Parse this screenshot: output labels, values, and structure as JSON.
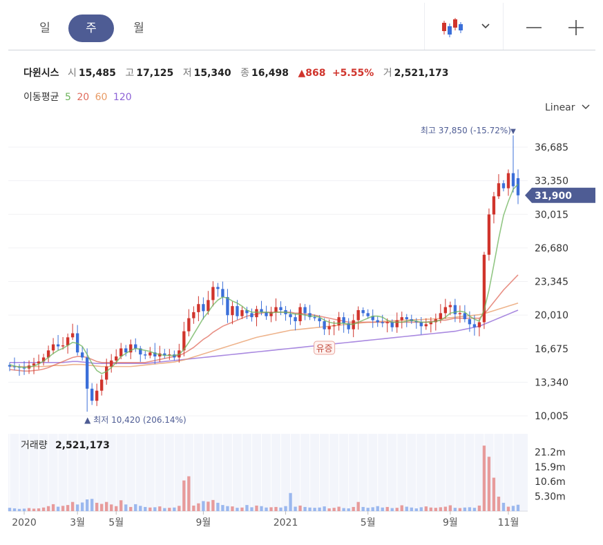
{
  "tabs": [
    {
      "label": "일",
      "active": false
    },
    {
      "label": "주",
      "active": true
    },
    {
      "label": "월",
      "active": false
    }
  ],
  "toolbar": {
    "chart_type_icon": "candlestick-icon",
    "dropdown_icon": "chevron-down-icon",
    "zoom_out_icon": "minus-icon",
    "zoom_in_icon": "plus-icon"
  },
  "stock": {
    "name": "다윈시스",
    "open_label": "시",
    "open": "15,485",
    "high_label": "고",
    "high": "17,125",
    "low_label": "저",
    "low": "15,340",
    "close_label": "종",
    "close": "16,498",
    "change": "868",
    "change_pct": "+5.55%",
    "volume_label": "거",
    "volume": "2,521,173"
  },
  "moving_average": {
    "label": "이동평균",
    "periods": [
      {
        "value": "5",
        "color": "#6cb35a"
      },
      {
        "value": "20",
        "color": "#e06b5c"
      },
      {
        "value": "60",
        "color": "#e89a64"
      },
      {
        "value": "120",
        "color": "#8c62d6"
      }
    ]
  },
  "scale": {
    "label": "Linear"
  },
  "colors": {
    "up": "#d0342c",
    "down": "#3b6fd9",
    "accent": "#4e5c94",
    "vol_up": "#e79b9b",
    "vol_down": "#9bb8ee"
  },
  "chart_data": {
    "type": "candlestick",
    "y_ticks": [
      "36,685",
      "33,350",
      "30,015",
      "26,680",
      "23,345",
      "20,010",
      "16,675",
      "13,340",
      "10,005"
    ],
    "y_tick_values": [
      36685,
      33350,
      30015,
      26680,
      23345,
      20010,
      16675,
      13340,
      10005
    ],
    "ylim": [
      10005,
      36685
    ],
    "x_ticks": [
      "2020",
      "3월",
      "5월",
      "9월",
      "2021",
      "5월",
      "9월",
      "11월"
    ],
    "x_tick_index": [
      3,
      14,
      22,
      40,
      57,
      74,
      91,
      103
    ],
    "current_price": "31,900",
    "current_value": 31900,
    "high_marker": {
      "label": "최고",
      "value": "37,850",
      "pct": "(-15.72%)",
      "index": 104
    },
    "low_marker": {
      "label": "최저",
      "value": "10,420",
      "pct": "(206.14%)",
      "index": 16
    },
    "annotation": {
      "label": "유증",
      "index": 65
    },
    "closes": [
      14900,
      14850,
      14800,
      14700,
      15000,
      15200,
      15400,
      15800,
      16500,
      17100,
      16900,
      17000,
      17800,
      18200,
      16300,
      15800,
      12700,
      11500,
      12500,
      13600,
      14900,
      15500,
      15900,
      16700,
      16300,
      17100,
      16700,
      16100,
      16000,
      16300,
      15900,
      16200,
      16000,
      16100,
      15800,
      16500,
      18400,
      19700,
      20300,
      21100,
      20400,
      21500,
      22800,
      22600,
      21800,
      20000,
      20900,
      19900,
      20500,
      20200,
      19800,
      20600,
      20300,
      19900,
      20300,
      20800,
      20500,
      20100,
      19800,
      19400,
      20800,
      20200,
      19800,
      19700,
      19400,
      18600,
      18900,
      19000,
      19800,
      19200,
      18600,
      19500,
      20500,
      20200,
      19900,
      19500,
      19300,
      19200,
      19300,
      18800,
      19500,
      19800,
      19600,
      19400,
      19300,
      18900,
      19100,
      19300,
      19600,
      20200,
      20800,
      21000,
      20100,
      20200,
      19600,
      19100,
      18800,
      19300,
      26000,
      30000,
      31800,
      33100,
      32600,
      34100,
      32800,
      31900
    ],
    "ma5": [
      15100,
      14950,
      14850,
      14800,
      14850,
      14950,
      15150,
      15450,
      15800,
      16200,
      16500,
      16700,
      17000,
      17300,
      17200,
      16900,
      16100,
      15200,
      14500,
      14200,
      14400,
      14800,
      15300,
      15900,
      16200,
      16500,
      16700,
      16600,
      16500,
      16400,
      16200,
      16100,
      16000,
      16000,
      16000,
      16100,
      16600,
      17300,
      18100,
      18900,
      19700,
      20300,
      21000,
      21500,
      21800,
      21700,
      21400,
      21200,
      20900,
      20500,
      20300,
      20300,
      20300,
      20300,
      20200,
      20300,
      20300,
      20300,
      20200,
      20100,
      20100,
      20000,
      19900,
      19900,
      19800,
      19500,
      19300,
      19200,
      19200,
      19200,
      19100,
      19100,
      19300,
      19500,
      19700,
      19900,
      19900,
      19800,
      19500,
      19300,
      19300,
      19300,
      19400,
      19500,
      19400,
      19300,
      19300,
      19300,
      19400,
      19500,
      19800,
      20200,
      20300,
      20400,
      20300,
      19900,
      19600,
      19400,
      20500,
      22500,
      25000,
      27600,
      29900,
      31300,
      32500,
      33000
    ],
    "ma20": [
      14600,
      14550,
      14500,
      14450,
      14450,
      14500,
      14550,
      14650,
      14800,
      15000,
      15200,
      15400,
      15600,
      15800,
      15900,
      15900,
      15800,
      15600,
      15400,
      15300,
      15300,
      15300,
      15300,
      15300,
      15300,
      15300,
      15300,
      15300,
      15300,
      15400,
      15500,
      15600,
      15700,
      15800,
      15900,
      16000,
      16200,
      16500,
      16800,
      17200,
      17600,
      17900,
      18300,
      18600,
      18900,
      19100,
      19300,
      19500,
      19700,
      19900,
      20000,
      20100,
      20200,
      20300,
      20300,
      20300,
      20300,
      20300,
      20300,
      20200,
      20200,
      20100,
      20100,
      20000,
      19900,
      19800,
      19700,
      19600,
      19500,
      19400,
      19300,
      19300,
      19300,
      19300,
      19300,
      19300,
      19300,
      19300,
      19300,
      19300,
      19300,
      19300,
      19300,
      19300,
      19300,
      19300,
      19300,
      19400,
      19400,
      19500,
      19500,
      19600,
      19700,
      19700,
      19700,
      19700,
      19700,
      19700,
      20100,
      20700,
      21300,
      21900,
      22500,
      23000,
      23500,
      24000
    ],
    "ma60": [
      14900,
      14900,
      14900,
      14900,
      14900,
      14900,
      14900,
      14900,
      14950,
      15000,
      15000,
      15000,
      15050,
      15100,
      15100,
      15100,
      15050,
      15000,
      14950,
      14900,
      14900,
      14900,
      14900,
      14900,
      14900,
      14900,
      14950,
      15000,
      15050,
      15100,
      15150,
      15200,
      15250,
      15300,
      15350,
      15450,
      15550,
      15700,
      15850,
      16000,
      16150,
      16300,
      16450,
      16600,
      16750,
      16900,
      17050,
      17200,
      17350,
      17500,
      17650,
      17800,
      17900,
      18000,
      18100,
      18200,
      18300,
      18400,
      18500,
      18550,
      18600,
      18650,
      18700,
      18750,
      18800,
      18850,
      18900,
      18950,
      19000,
      19050,
      19100,
      19150,
      19200,
      19250,
      19300,
      19300,
      19350,
      19400,
      19400,
      19450,
      19450,
      19500,
      19500,
      19550,
      19550,
      19550,
      19600,
      19600,
      19650,
      19650,
      19700,
      19750,
      19800,
      19850,
      19900,
      19950,
      20000,
      20050,
      20150,
      20300,
      20450,
      20600,
      20750,
      20900,
      21050,
      21200
    ],
    "ma120": [
      15300,
      15300,
      15300,
      15300,
      15300,
      15300,
      15300,
      15300,
      15300,
      15300,
      15300,
      15300,
      15350,
      15400,
      15400,
      15350,
      15300,
      15250,
      15200,
      15200,
      15200,
      15200,
      15200,
      15200,
      15200,
      15200,
      15200,
      15200,
      15200,
      15250,
      15300,
      15350,
      15400,
      15450,
      15500,
      15550,
      15600,
      15650,
      15700,
      15750,
      15800,
      15850,
      15900,
      15950,
      16000,
      16050,
      16100,
      16150,
      16200,
      16250,
      16300,
      16350,
      16400,
      16450,
      16500,
      16550,
      16600,
      16650,
      16700,
      16750,
      16800,
      16850,
      16900,
      16950,
      17000,
      17050,
      17100,
      17150,
      17200,
      17250,
      17300,
      17350,
      17400,
      17450,
      17500,
      17550,
      17600,
      17650,
      17700,
      17750,
      17800,
      17850,
      17900,
      17950,
      18000,
      18050,
      18100,
      18150,
      18200,
      18250,
      18300,
      18350,
      18400,
      18500,
      18600,
      18700,
      18800,
      18900,
      19100,
      19300,
      19500,
      19700,
      19900,
      20100,
      20300,
      20500
    ]
  },
  "volume": {
    "label": "거래량",
    "value": "2,521,173",
    "y_ticks": [
      "21.2m",
      "15.9m",
      "10.6m",
      "5.30m"
    ],
    "y_tick_values": [
      21.2,
      15.9,
      10.6,
      5.3
    ],
    "ylim": [
      0,
      26
    ],
    "values": [
      1.2,
      1.0,
      0.8,
      0.9,
      1.1,
      0.9,
      1.0,
      1.3,
      1.8,
      2.5,
      1.6,
      1.9,
      2.2,
      3.3,
      2.4,
      3.1,
      4.2,
      4.4,
      3.0,
      2.6,
      3.3,
      2.4,
      1.8,
      3.9,
      2.4,
      1.5,
      2.5,
      1.9,
      1.5,
      1.3,
      1.4,
      1.7,
      1.1,
      1.2,
      1.3,
      1.9,
      11.0,
      12.5,
      2.0,
      2.8,
      3.6,
      3.4,
      4.0,
      3.0,
      2.2,
      1.8,
      1.7,
      1.2,
      1.3,
      2.2,
      1.4,
      2.0,
      1.8,
      1.3,
      1.4,
      1.5,
      1.3,
      1.8,
      6.5,
      1.6,
      2.0,
      1.5,
      1.3,
      1.2,
      1.3,
      1.7,
      1.0,
      1.2,
      1.6,
      1.1,
      1.0,
      1.5,
      3.3,
      1.5,
      1.2,
      1.4,
      1.8,
      1.3,
      1.5,
      1.1,
      1.2,
      2.1,
      1.6,
      1.3,
      1.0,
      1.4,
      1.7,
      1.3,
      1.2,
      1.4,
      1.6,
      2.1,
      1.2,
      1.1,
      1.3,
      1.4,
      1.2,
      2.0,
      23.5,
      19.5,
      12.0,
      5.2,
      3.0,
      1.6,
      1.9,
      2.3
    ]
  }
}
